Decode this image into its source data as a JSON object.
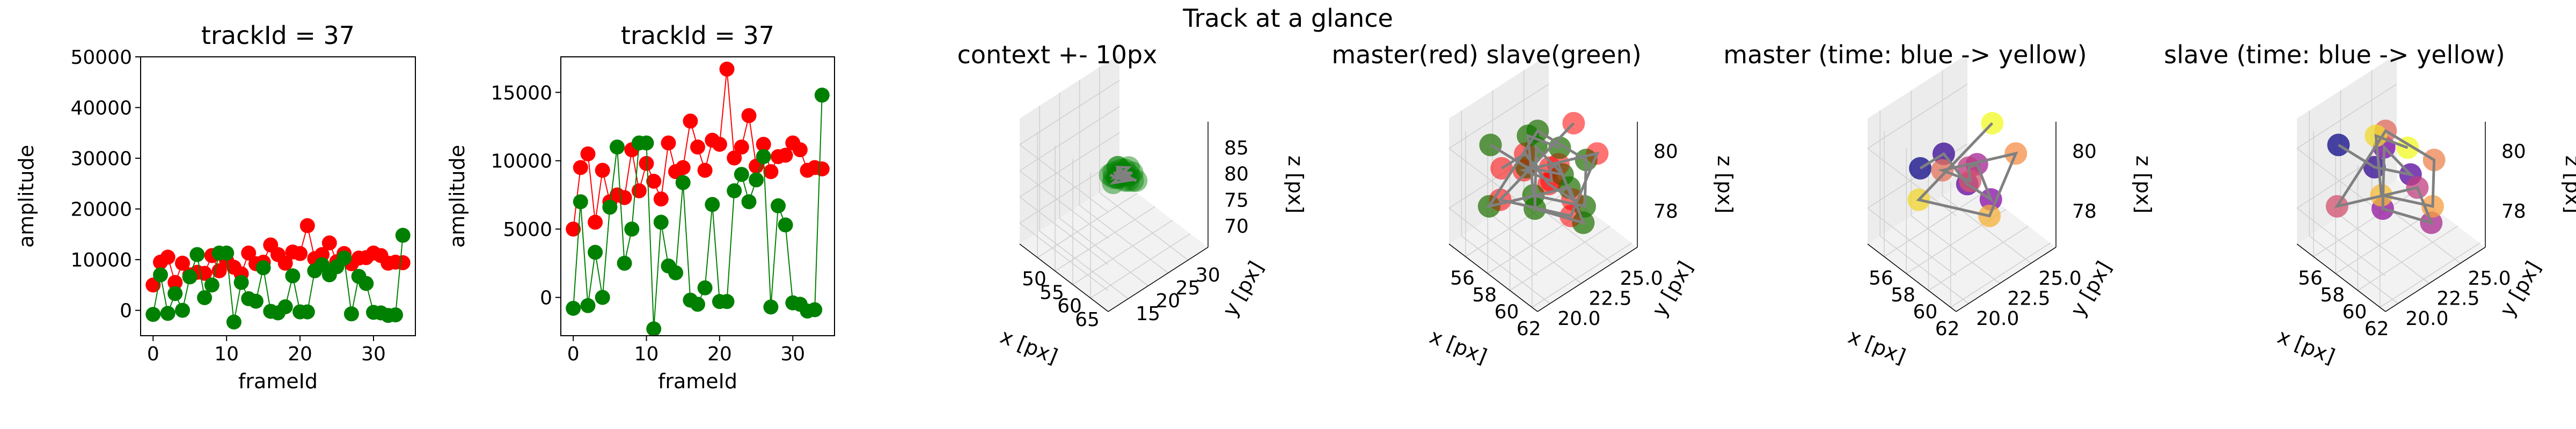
{
  "suptitle": "Track at a glance",
  "colors": {
    "red": "#ff0000",
    "green": "#008000",
    "darkgreen": "#3c5e00",
    "axis_line": "#000000",
    "pane": "#f2f2f2",
    "grid": "#cfcfcf",
    "track_line": "#808080"
  },
  "chart_data": [
    {
      "type": "line",
      "title": "trackId = 37",
      "xlabel": "frameId",
      "ylabel": "amplitude",
      "xlim": [
        -1.7,
        35.7
      ],
      "ylim": [
        -5000,
        50000
      ],
      "xticks": [
        "0",
        "10",
        "20",
        "30"
      ],
      "yticks": [
        "0",
        "10000",
        "20000",
        "30000",
        "40000",
        "50000"
      ],
      "x": [
        0,
        1,
        2,
        3,
        4,
        5,
        6,
        7,
        8,
        9,
        10,
        11,
        12,
        13,
        14,
        15,
        16,
        17,
        18,
        19,
        20,
        21,
        22,
        23,
        24,
        25,
        26,
        27,
        28,
        29,
        30,
        31,
        32,
        33,
        34
      ],
      "series": [
        {
          "color": "red",
          "values": [
            5000,
            9500,
            10500,
            5500,
            9300,
            7000,
            7500,
            7300,
            10800,
            7800,
            9800,
            8500,
            7200,
            11300,
            9200,
            9500,
            12900,
            11000,
            9300,
            11500,
            11200,
            16700,
            10200,
            11000,
            13300,
            9600,
            11200,
            9200,
            10300,
            10400,
            11300,
            10800,
            9300,
            9500,
            9400
          ]
        },
        {
          "color": "green",
          "values": [
            -800,
            7000,
            -600,
            3300,
            0,
            6600,
            11000,
            2500,
            5000,
            11300,
            11300,
            -2300,
            5500,
            2300,
            1800,
            8400,
            -200,
            -500,
            700,
            6800,
            -300,
            -300,
            7800,
            9000,
            7000,
            8600,
            10300,
            -700,
            6700,
            5300,
            -400,
            -500,
            -1000,
            -900,
            14800
          ]
        }
      ]
    },
    {
      "type": "line",
      "title": "trackId = 37",
      "xlabel": "frameId",
      "ylabel": "amplitude",
      "xlim": [
        -1.7,
        35.7
      ],
      "ylim": [
        -2800,
        17600
      ],
      "xticks": [
        "0",
        "10",
        "20",
        "30"
      ],
      "yticks": [
        "0",
        "5000",
        "10000",
        "15000"
      ],
      "x": [
        0,
        1,
        2,
        3,
        4,
        5,
        6,
        7,
        8,
        9,
        10,
        11,
        12,
        13,
        14,
        15,
        16,
        17,
        18,
        19,
        20,
        21,
        22,
        23,
        24,
        25,
        26,
        27,
        28,
        29,
        30,
        31,
        32,
        33,
        34
      ],
      "series": [
        {
          "color": "red",
          "values": [
            5000,
            9500,
            10500,
            5500,
            9300,
            7000,
            7500,
            7300,
            10800,
            7800,
            9800,
            8500,
            7200,
            11300,
            9200,
            9500,
            12900,
            11000,
            9300,
            11500,
            11200,
            16700,
            10200,
            11000,
            13300,
            9600,
            11200,
            9200,
            10300,
            10400,
            11300,
            10800,
            9300,
            9500,
            9400
          ]
        },
        {
          "color": "green",
          "values": [
            -800,
            7000,
            -600,
            3300,
            0,
            6600,
            11000,
            2500,
            5000,
            11300,
            11300,
            -2300,
            5500,
            2300,
            1800,
            8400,
            -200,
            -500,
            700,
            6800,
            -300,
            -300,
            7800,
            9000,
            7000,
            8600,
            10300,
            -700,
            6700,
            5300,
            -400,
            -500,
            -1000,
            -900,
            14800
          ]
        }
      ]
    },
    {
      "type": "scatter",
      "projection": "3d",
      "title": "context +- 10px",
      "xlabel": "x [px]",
      "ylabel": "y [px]",
      "zlabel": "z [px]",
      "xlim": [
        45,
        70
      ],
      "ylim": [
        10,
        35
      ],
      "zlim": [
        66,
        90
      ],
      "xticks": [
        "50",
        "55",
        "60",
        "65"
      ],
      "yticks": [
        "15",
        "20",
        "25",
        "30"
      ],
      "zticks": [
        "70",
        "75",
        "80",
        "85"
      ],
      "points": [
        [
          57,
          22,
          79.5
        ],
        [
          58,
          23,
          79
        ],
        [
          59,
          24,
          80.5
        ],
        [
          60,
          22,
          81
        ],
        [
          61,
          25,
          79
        ],
        [
          58,
          25,
          78.5
        ],
        [
          57,
          24,
          80
        ],
        [
          60,
          24,
          81.5
        ],
        [
          59,
          21,
          79.5
        ],
        [
          61,
          23,
          80
        ],
        [
          58,
          22,
          80.5
        ],
        [
          60,
          25,
          78.5
        ],
        [
          59,
          23,
          81
        ],
        [
          57,
          23,
          78.5
        ],
        [
          61,
          24,
          81
        ],
        [
          58,
          24,
          79.5
        ],
        [
          59,
          25,
          79
        ],
        [
          60,
          23,
          79.5
        ],
        [
          59,
          22,
          80
        ],
        [
          58,
          23,
          81
        ]
      ],
      "marker_color": "green"
    },
    {
      "type": "scatter",
      "projection": "3d",
      "title": "master(red) slave(green)",
      "xlabel": "x [px]",
      "ylabel": "y [px]",
      "zlabel": "z [px]",
      "xlim": [
        54.5,
        62.5
      ],
      "ylim": [
        19,
        27
      ],
      "zlim": [
        76.8,
        81
      ],
      "xticks": [
        "56",
        "58",
        "60",
        "62"
      ],
      "yticks": [
        "20.0",
        "22.5",
        "25.0"
      ],
      "zticks": [
        "78",
        "80"
      ],
      "master_points": [
        [
          57,
          21,
          79.5
        ],
        [
          58,
          22,
          80
        ],
        [
          59,
          23,
          79
        ],
        [
          60,
          24,
          78.5
        ],
        [
          61,
          22,
          80.5
        ],
        [
          58,
          24,
          79
        ],
        [
          57,
          25,
          78
        ],
        [
          59,
          21,
          80
        ],
        [
          60,
          26,
          79.5
        ],
        [
          61,
          23,
          78.5
        ],
        [
          58,
          20,
          79
        ],
        [
          59,
          25,
          80.5
        ]
      ],
      "slave_points": [
        [
          56,
          21,
          80
        ],
        [
          57,
          23,
          79
        ],
        [
          58,
          25,
          78.5
        ],
        [
          59,
          22,
          80.5
        ],
        [
          60,
          21,
          79
        ],
        [
          61,
          24,
          78
        ],
        [
          62,
          22,
          80
        ],
        [
          57,
          20,
          78.5
        ],
        [
          58,
          23,
          80.5
        ],
        [
          59,
          26,
          79
        ],
        [
          60,
          25,
          78
        ],
        [
          61,
          20,
          80
        ],
        [
          56,
          24,
          79.5
        ],
        [
          60,
          23,
          80.5
        ]
      ],
      "master_color": "red",
      "slave_color": "green"
    },
    {
      "type": "scatter",
      "projection": "3d",
      "title": "master (time: blue -> yellow)",
      "xlabel": "x [px]",
      "ylabel": "y [px]",
      "zlabel": "z [px]",
      "xlim": [
        54.5,
        62.5
      ],
      "ylim": [
        19,
        27
      ],
      "zlim": [
        76.8,
        81
      ],
      "xticks": [
        "56",
        "58",
        "60",
        "62"
      ],
      "yticks": [
        "20.0",
        "22.5",
        "25.0"
      ],
      "zticks": [
        "78",
        "80"
      ],
      "points": [
        [
          57,
          21,
          79.5
        ],
        [
          58,
          22,
          80
        ],
        [
          59,
          23,
          79
        ],
        [
          60,
          24,
          78.5
        ],
        [
          61,
          22,
          80.5
        ],
        [
          58,
          24,
          79
        ],
        [
          57,
          25,
          78
        ],
        [
          59,
          21,
          80
        ],
        [
          60,
          26,
          79.5
        ],
        [
          61,
          23,
          78.5
        ],
        [
          58,
          20,
          79
        ],
        [
          59,
          25,
          80.5
        ]
      ],
      "colormap": "plasma"
    },
    {
      "type": "scatter",
      "projection": "3d",
      "title": "slave (time: blue -> yellow)",
      "xlabel": "x [px]",
      "ylabel": "y [px]",
      "zlabel": "z [px]",
      "xlim": [
        54.5,
        62.5
      ],
      "ylim": [
        19,
        27
      ],
      "zlim": [
        76.8,
        81
      ],
      "xticks": [
        "56",
        "58",
        "60",
        "62"
      ],
      "yticks": [
        "20.0",
        "22.5",
        "25.0"
      ],
      "zticks": [
        "78",
        "80"
      ],
      "points": [
        [
          56,
          21,
          80
        ],
        [
          57,
          23,
          79
        ],
        [
          58,
          25,
          78.5
        ],
        [
          59,
          22,
          80.5
        ],
        [
          60,
          21,
          79
        ],
        [
          61,
          24,
          78
        ],
        [
          62,
          22,
          80
        ],
        [
          57,
          20,
          78.5
        ],
        [
          58,
          23,
          80.5
        ],
        [
          59,
          26,
          79
        ],
        [
          60,
          25,
          78
        ],
        [
          61,
          20,
          80
        ],
        [
          56,
          24,
          79.5
        ],
        [
          60,
          23,
          80.5
        ]
      ],
      "colormap": "plasma"
    }
  ]
}
